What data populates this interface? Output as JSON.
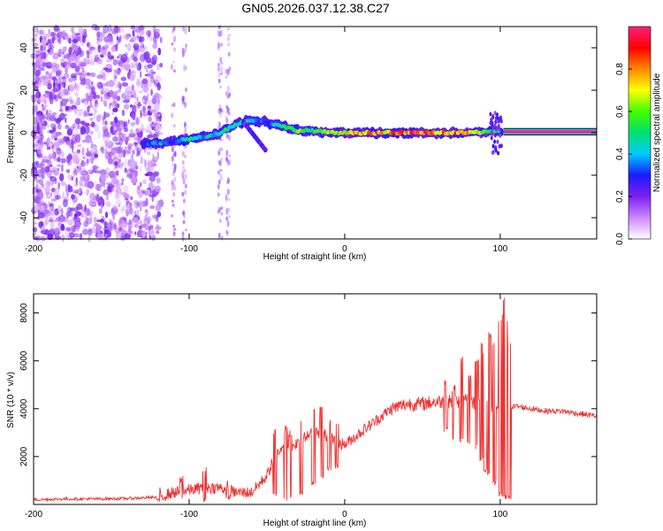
{
  "title": "GN05.2026.037.12.38.C27",
  "chart_data": [
    {
      "type": "heatmap",
      "xlabel": "Height of straight line (km)",
      "ylabel": "Frequency (Hz)",
      "xlim": [
        -200,
        162
      ],
      "ylim": [
        -50,
        50
      ],
      "xticks": [
        -200,
        -100,
        0,
        100
      ],
      "yticks": [
        -40,
        -20,
        0,
        20,
        40
      ],
      "colorbar": {
        "label": "Normalized spectral amplitude",
        "range": [
          0,
          1
        ],
        "ticks": [
          "0.0",
          "0.2",
          "0.4",
          "0.6",
          "0.8"
        ],
        "tick_values": [
          0,
          0.2,
          0.4,
          0.6,
          0.8
        ],
        "colors": [
          "#ffffff",
          "#cc88ff",
          "#7a22ee",
          "#1a1aff",
          "#00ccff",
          "#00e070",
          "#40ff00",
          "#ffff00",
          "#ff8800",
          "#ff0000",
          "#ff2080"
        ]
      },
      "ridge": [
        {
          "x": -130,
          "f": -5,
          "a": 0.3
        },
        {
          "x": -120,
          "f": -5,
          "a": 0.4
        },
        {
          "x": -110,
          "f": -4,
          "a": 0.35
        },
        {
          "x": -100,
          "f": -3,
          "a": 0.5
        },
        {
          "x": -90,
          "f": -2,
          "a": 0.45
        },
        {
          "x": -80,
          "f": 0,
          "a": 0.5
        },
        {
          "x": -70,
          "f": 4,
          "a": 0.55
        },
        {
          "x": -60,
          "f": 6,
          "a": 0.4
        },
        {
          "x": -50,
          "f": 5,
          "a": 0.35
        },
        {
          "x": -40,
          "f": 3,
          "a": 0.5
        },
        {
          "x": -30,
          "f": 1,
          "a": 0.65
        },
        {
          "x": -20,
          "f": 1,
          "a": 0.55
        },
        {
          "x": -10,
          "f": 0,
          "a": 0.7
        },
        {
          "x": 0,
          "f": 0,
          "a": 0.75
        },
        {
          "x": 20,
          "f": 0,
          "a": 0.85
        },
        {
          "x": 40,
          "f": 0,
          "a": 0.9
        },
        {
          "x": 60,
          "f": 0,
          "a": 0.9
        },
        {
          "x": 80,
          "f": 0,
          "a": 0.85
        },
        {
          "x": 100,
          "f": 1,
          "a": 0.5
        },
        {
          "x": 102,
          "f": 0.5,
          "a": 1.0
        },
        {
          "x": 162,
          "f": 0.5,
          "a": 1.0
        }
      ]
    },
    {
      "type": "line",
      "xlabel": "Height of straight line (km)",
      "ylabel": "SNR (10 * v/v)",
      "xlim": [
        -200,
        162
      ],
      "ylim": [
        0,
        8800
      ],
      "xticks": [
        -200,
        -100,
        0,
        100
      ],
      "yticks": [
        2000,
        4000,
        6000,
        8000
      ],
      "color": "#ee3333",
      "series": [
        {
          "name": "SNR",
          "x": [
            -200,
            -180,
            -160,
            -140,
            -120,
            -110,
            -100,
            -90,
            -80,
            -70,
            -60,
            -50,
            -45,
            -40,
            -35,
            -30,
            -25,
            -20,
            -15,
            -10,
            -5,
            0,
            10,
            20,
            30,
            40,
            50,
            60,
            70,
            80,
            85,
            90,
            95,
            100,
            103,
            105,
            110,
            120,
            130,
            140,
            150,
            162
          ],
          "y": [
            200,
            230,
            230,
            250,
            300,
            500,
            600,
            700,
            700,
            500,
            500,
            1200,
            2000,
            2500,
            2400,
            2600,
            2800,
            3000,
            3000,
            2800,
            2600,
            2500,
            3000,
            3500,
            4000,
            4200,
            4200,
            4300,
            4300,
            4300,
            4200,
            4200,
            3800,
            4000,
            4000,
            4100,
            4100,
            4000,
            3900,
            3900,
            3800,
            3700
          ]
        }
      ],
      "spikes": [
        {
          "x": -120,
          "min": 50,
          "max": 1000
        },
        {
          "x": -105,
          "min": 100,
          "max": 1200
        },
        {
          "x": -90,
          "min": 100,
          "max": 1600
        },
        {
          "x": -75,
          "min": 100,
          "max": 1000
        },
        {
          "x": -45,
          "min": 300,
          "max": 3200
        },
        {
          "x": -38,
          "min": 100,
          "max": 3300
        },
        {
          "x": -35,
          "min": 200,
          "max": 3100
        },
        {
          "x": -28,
          "min": 400,
          "max": 3600
        },
        {
          "x": -20,
          "min": 800,
          "max": 4200
        },
        {
          "x": -15,
          "min": 1000,
          "max": 4300
        },
        {
          "x": -10,
          "min": 1400,
          "max": 3600
        },
        {
          "x": -5,
          "min": 1500,
          "max": 3400
        },
        {
          "x": 65,
          "min": 3000,
          "max": 5200
        },
        {
          "x": 70,
          "min": 2700,
          "max": 5000
        },
        {
          "x": 75,
          "min": 2600,
          "max": 6200
        },
        {
          "x": 80,
          "min": 2500,
          "max": 5400
        },
        {
          "x": 85,
          "min": 2300,
          "max": 6100
        },
        {
          "x": 88,
          "min": 1800,
          "max": 6800
        },
        {
          "x": 90,
          "min": 1300,
          "max": 6500
        },
        {
          "x": 93,
          "min": 1200,
          "max": 7200
        },
        {
          "x": 96,
          "min": 800,
          "max": 6900
        },
        {
          "x": 100,
          "min": 300,
          "max": 7900
        },
        {
          "x": 102,
          "min": 200,
          "max": 8100
        },
        {
          "x": 103,
          "min": 200,
          "max": 8700
        },
        {
          "x": 105,
          "min": 300,
          "max": 7700
        },
        {
          "x": 106,
          "min": 200,
          "max": 7000
        }
      ]
    }
  ]
}
